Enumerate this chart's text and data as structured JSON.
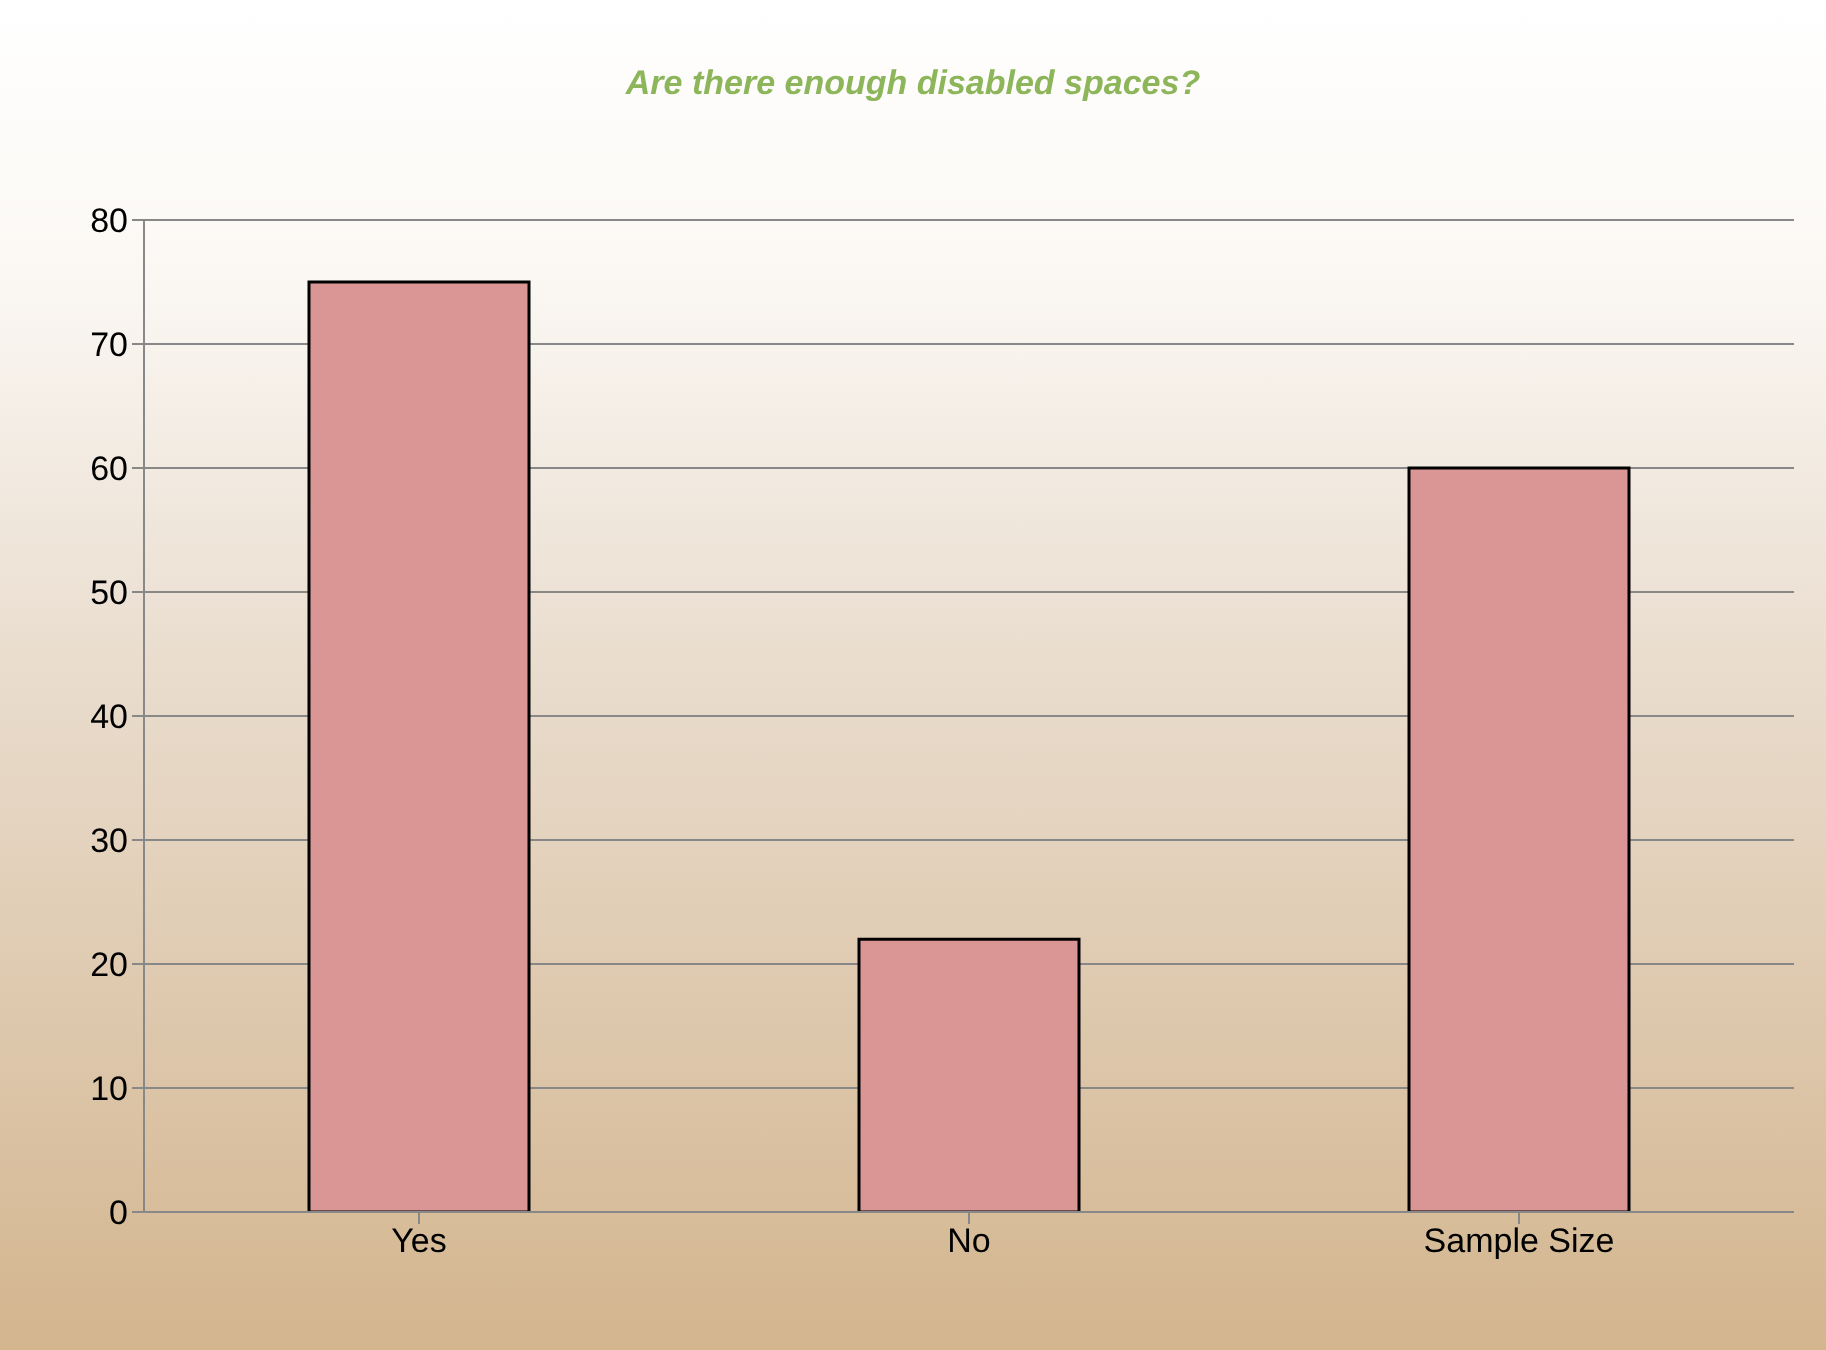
{
  "chart_data": {
    "type": "bar",
    "title": "Are there enough disabled spaces?",
    "categories": [
      "Yes",
      "No",
      "Sample Size"
    ],
    "values": [
      75,
      22,
      60
    ],
    "color": "#d99694",
    "ylim": [
      0,
      80
    ],
    "yticks": [
      0,
      10,
      20,
      30,
      40,
      50,
      60,
      70,
      80
    ],
    "grid": "y"
  }
}
